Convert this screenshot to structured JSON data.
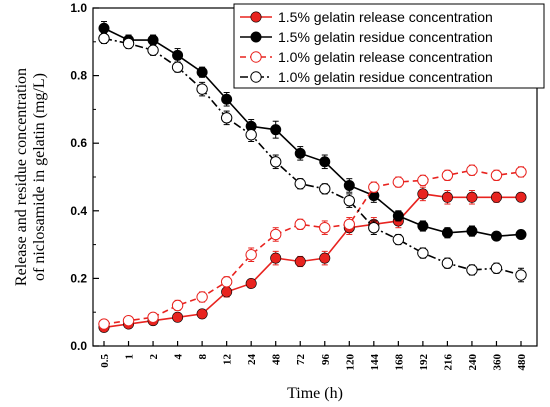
{
  "chart_data": {
    "type": "line",
    "xlabel": "Time (h)",
    "ylabel_lines": [
      "Release and residue concentration",
      "of niclosamide in gelatin (mg/L)"
    ],
    "categories": [
      "0.5",
      "1",
      "2",
      "4",
      "8",
      "12",
      "24",
      "48",
      "72",
      "96",
      "120",
      "144",
      "168",
      "192",
      "216",
      "240",
      "360",
      "480"
    ],
    "ylim": [
      0.0,
      1.0
    ],
    "yticks": [
      "0.0",
      "0.2",
      "0.4",
      "0.6",
      "0.8",
      "1.0"
    ],
    "legend_position": "top-right",
    "series": [
      {
        "name": "1.5% gelatin release concentration",
        "color": "#e8231f",
        "marker": "filled",
        "line": "solid",
        "values": [
          0.055,
          0.065,
          0.075,
          0.085,
          0.095,
          0.16,
          0.185,
          0.26,
          0.25,
          0.26,
          0.35,
          0.36,
          0.37,
          0.45,
          0.44,
          0.44,
          0.44,
          0.44
        ],
        "errors": [
          0.01,
          0.01,
          0.01,
          0.01,
          0.01,
          0.015,
          0.01,
          0.02,
          0.015,
          0.02,
          0.02,
          0.02,
          0.02,
          0.02,
          0.02,
          0.02,
          0.015,
          0.01
        ]
      },
      {
        "name": "1.5% gelatin residue concentration",
        "color": "#000000",
        "marker": "filled",
        "line": "solid",
        "values": [
          0.94,
          0.905,
          0.905,
          0.86,
          0.81,
          0.73,
          0.65,
          0.64,
          0.57,
          0.545,
          0.475,
          0.445,
          0.385,
          0.355,
          0.335,
          0.34,
          0.325,
          0.33
        ],
        "errors": [
          0.02,
          0.015,
          0.015,
          0.02,
          0.015,
          0.02,
          0.02,
          0.025,
          0.02,
          0.02,
          0.02,
          0.02,
          0.015,
          0.015,
          0.015,
          0.015,
          0.01,
          0.01
        ]
      },
      {
        "name": "1.0% gelatin release concentration",
        "color": "#e8231f",
        "marker": "open",
        "line": "dashed",
        "values": [
          0.065,
          0.075,
          0.085,
          0.12,
          0.145,
          0.19,
          0.27,
          0.33,
          0.36,
          0.35,
          0.36,
          0.47,
          0.485,
          0.49,
          0.505,
          0.52,
          0.505,
          0.515
        ],
        "errors": [
          0.01,
          0.01,
          0.01,
          0.015,
          0.015,
          0.015,
          0.02,
          0.02,
          0.015,
          0.02,
          0.02,
          0.015,
          0.015,
          0.015,
          0.015,
          0.015,
          0.015,
          0.015
        ]
      },
      {
        "name": "1.0% gelatin residue concentration",
        "color": "#000000",
        "marker": "open",
        "line": "dashdot",
        "values": [
          0.91,
          0.895,
          0.875,
          0.825,
          0.76,
          0.675,
          0.625,
          0.545,
          0.48,
          0.465,
          0.43,
          0.35,
          0.315,
          0.275,
          0.245,
          0.225,
          0.23,
          0.21
        ],
        "errors": [
          0.015,
          0.015,
          0.015,
          0.015,
          0.02,
          0.02,
          0.02,
          0.02,
          0.015,
          0.015,
          0.02,
          0.02,
          0.015,
          0.015,
          0.015,
          0.015,
          0.015,
          0.02
        ]
      }
    ]
  }
}
